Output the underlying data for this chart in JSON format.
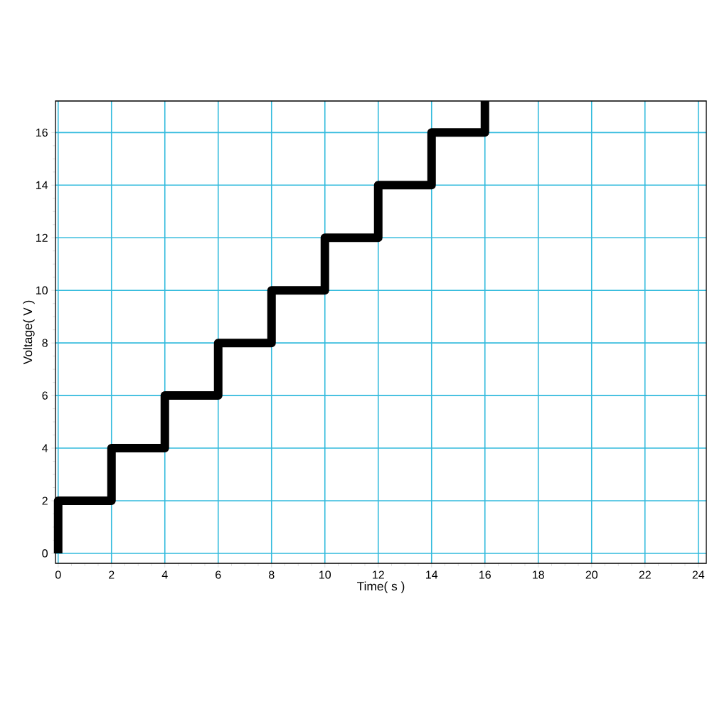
{
  "chart_data": {
    "type": "step",
    "xlabel": "Time( s )",
    "ylabel": "Voltage( V )",
    "x": [
      0,
      0,
      2,
      4,
      6,
      8,
      10,
      12,
      14,
      16
    ],
    "values": [
      0,
      2,
      4,
      6,
      8,
      10,
      12,
      14,
      16,
      17.2
    ],
    "color": "#000000",
    "xlim": [
      -0.1,
      24.3
    ],
    "ylim": [
      -0.38,
      17.2
    ],
    "xticks": [
      0,
      2,
      4,
      6,
      8,
      10,
      12,
      14,
      16,
      18,
      20,
      22,
      24
    ],
    "yticks": [
      0,
      2,
      4,
      6,
      8,
      10,
      12,
      14,
      16
    ],
    "grid": true
  }
}
